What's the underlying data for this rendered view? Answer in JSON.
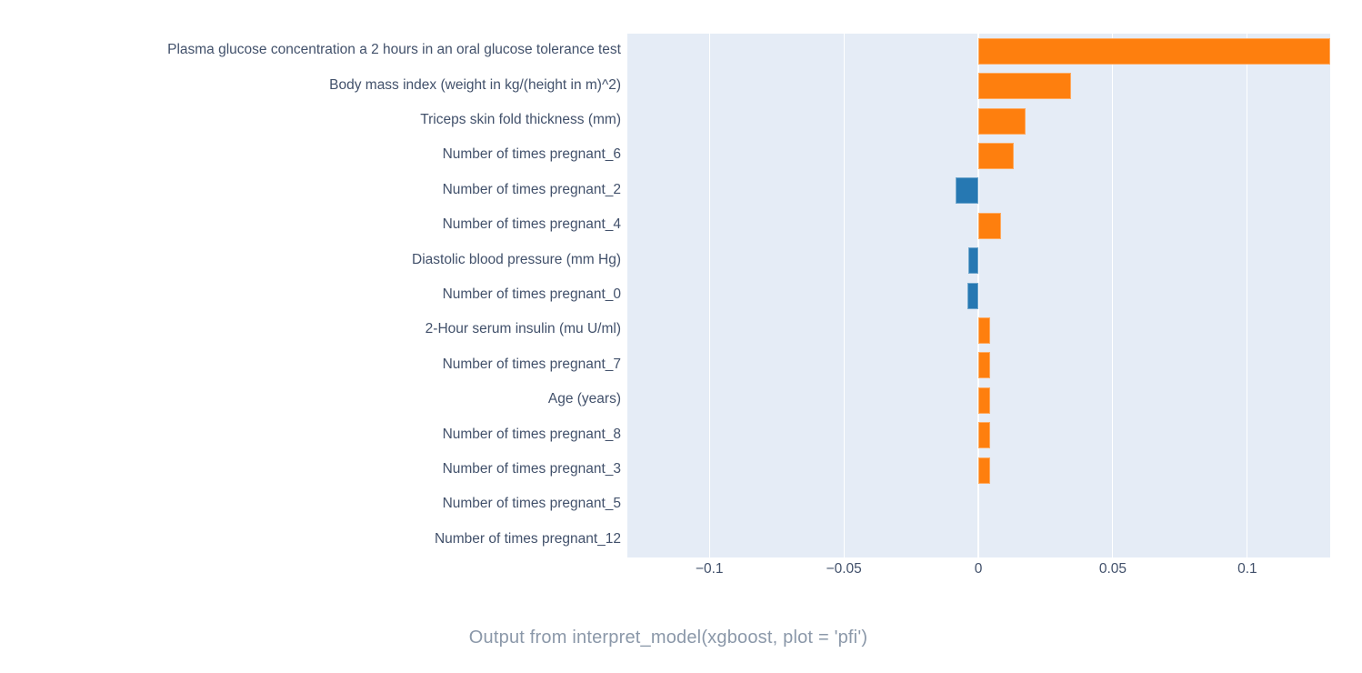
{
  "figure": {
    "caption": "Output from interpret_model(xgboost, plot = 'pfi')"
  },
  "chart_data": {
    "type": "bar",
    "orientation": "horizontal",
    "title": "",
    "xlabel": "",
    "ylabel": "",
    "legend": "none",
    "grid": true,
    "plot_background": "#e5ecf6",
    "gridline_color": "#ffffff",
    "positive_color": "#fe7f0e",
    "negative_color": "#2678b2",
    "tick_label_color": "#42516b",
    "xlim": [
      -0.1305,
      0.1308
    ],
    "x_ticks": [
      -0.1,
      -0.05,
      0,
      0.05,
      0.1
    ],
    "x_tick_labels": [
      "−0.1",
      "−0.05",
      "0",
      "0.05",
      "0.1"
    ],
    "categories": [
      "Plasma glucose concentration a 2 hours in an oral glucose tolerance test",
      "Body mass index (weight in kg/(height in m)^2)",
      "Triceps skin fold thickness (mm)",
      "Number of times pregnant_6",
      "Number of times pregnant_2",
      "Number of times pregnant_4",
      "Diastolic blood pressure (mm Hg)",
      "Number of times pregnant_0",
      "2-Hour serum insulin (mu U/ml)",
      "Number of times pregnant_7",
      "Age (years)",
      "Number of times pregnant_8",
      "Number of times pregnant_3",
      "Number of times pregnant_5",
      "Number of times pregnant_12"
    ],
    "values": [
      0.1307,
      0.0345,
      0.0176,
      0.0132,
      -0.0086,
      0.0086,
      -0.0038,
      -0.0042,
      0.0044,
      0.0044,
      0.0044,
      0.0044,
      0.0045,
      0,
      0
    ]
  }
}
